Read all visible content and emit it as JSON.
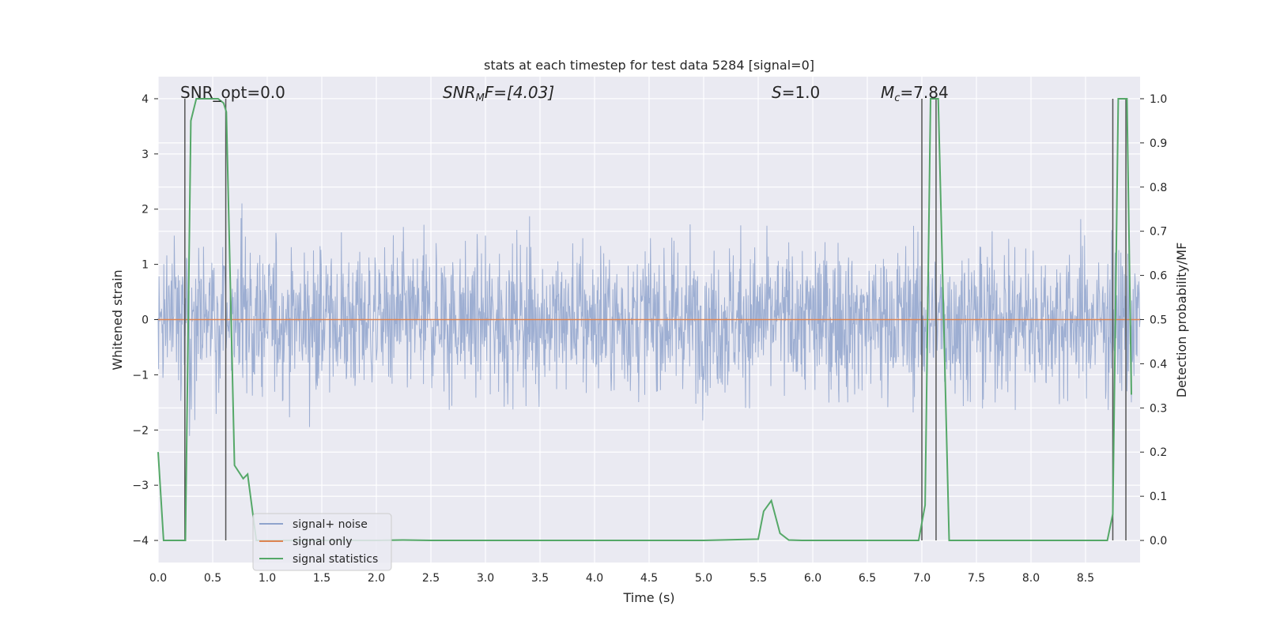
{
  "chart_data": {
    "type": "line",
    "title": "stats at each timestep for test data 5284 [signal=0]",
    "xlabel": "Time (s)",
    "ylabel": "Whitened strain",
    "ylabel_right": "Detection probability/MF",
    "xlim": [
      0.0,
      9.0
    ],
    "ylim": [
      -4.4,
      4.4
    ],
    "ylim_right": [
      -0.05,
      1.05
    ],
    "x_ticks": [
      "0.0",
      "0.5",
      "1.0",
      "1.5",
      "2.0",
      "2.5",
      "3.0",
      "3.5",
      "4.0",
      "4.5",
      "5.0",
      "5.5",
      "6.0",
      "6.5",
      "7.0",
      "7.5",
      "8.0",
      "8.5"
    ],
    "y_ticks": [
      "4",
      "3",
      "2",
      "1",
      "0",
      "−1",
      "−2",
      "−3",
      "−4"
    ],
    "y_ticks_right": [
      "1.0",
      "0.9",
      "0.8",
      "0.7",
      "0.6",
      "0.5",
      "0.4",
      "0.3",
      "0.2",
      "0.1",
      "0.0"
    ],
    "grid": true,
    "legend_position": "lower-left",
    "annotations": {
      "snr_opt": "SNR_opt=0.0",
      "snr_mf_prefix": "SNR",
      "snr_mf_sub": "M",
      "snr_mf_suffix": "F=[4.03]",
      "s_var": "S",
      "s_val": "=1.0",
      "mc_var": "M",
      "mc_sub": "c",
      "mc_val": "=7.84"
    },
    "series": [
      {
        "name": "signal+ noise",
        "color": "#8fa3cc",
        "kind": "noise",
        "amplitude_range": [
          -3.5,
          4.0
        ],
        "sample_rate_hz": 1000
      },
      {
        "name": "signal only",
        "color": "#dd8452",
        "kind": "constant",
        "value": 0.0
      },
      {
        "name": "signal statistics",
        "color": "#55a868",
        "axis": "right",
        "x": [
          0.0,
          0.05,
          0.25,
          0.3,
          0.35,
          0.4,
          0.45,
          0.5,
          0.55,
          0.6,
          0.625,
          0.7,
          0.78,
          0.82,
          0.9,
          1.0,
          1.5,
          2.0,
          2.25,
          2.5,
          5.0,
          5.5,
          5.55,
          5.62,
          5.7,
          5.78,
          5.9,
          6.97,
          7.03,
          7.08,
          7.15,
          7.25,
          8.7,
          8.75,
          8.8,
          8.85,
          8.88,
          8.92
        ],
        "y": [
          0.2,
          0.0,
          0.0,
          0.95,
          1.0,
          1.0,
          1.0,
          1.0,
          1.0,
          0.99,
          0.97,
          0.17,
          0.14,
          0.15,
          0.0,
          0.0,
          0.0,
          0.0,
          0.001,
          0.0,
          0.0,
          0.003,
          0.066,
          0.09,
          0.016,
          0.001,
          0.0,
          0.0,
          0.08,
          1.0,
          1.0,
          0.0,
          0.0,
          0.06,
          1.0,
          1.0,
          1.0,
          0.33
        ]
      }
    ],
    "vertical_lines": [
      0.245,
      0.62,
      7.0,
      7.13,
      8.75,
      8.87
    ],
    "vline_color": "#555555"
  }
}
